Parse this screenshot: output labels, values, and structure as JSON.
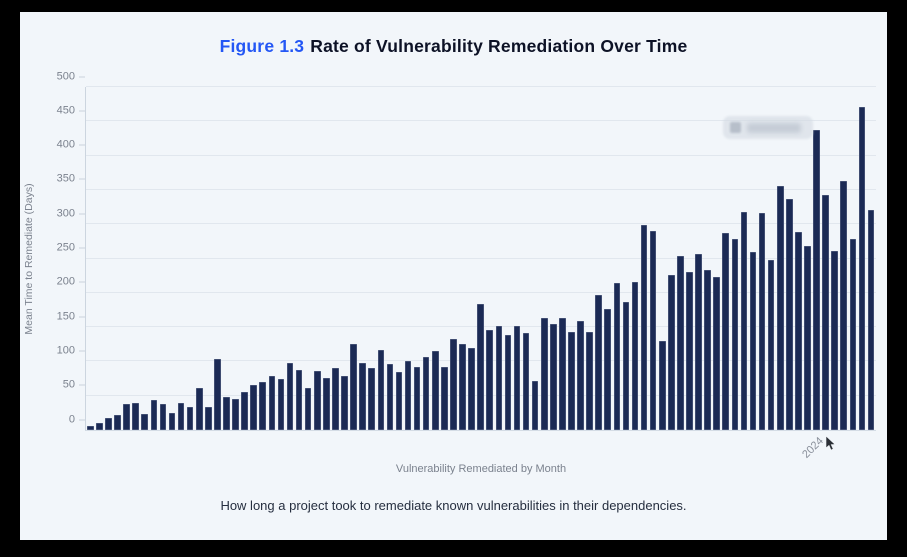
{
  "figure": {
    "label": "Figure 1.3",
    "title": "Rate of Vulnerability Remediation Over Time",
    "caption": "How long a project took to remediate known vulnerabilities in their dependencies."
  },
  "chart_data": {
    "type": "bar",
    "title": "Figure 1.3 Rate of Vulnerability Remediation Over Time",
    "xlabel": "Vulnerability Remediated by Month",
    "ylabel": "Mean Time to Remediate (Days)",
    "ylim": [
      0,
      500
    ],
    "yticks": [
      0,
      50,
      100,
      150,
      200,
      250,
      300,
      350,
      400,
      450,
      500
    ],
    "grid": true,
    "bar_color": "#1b2a55",
    "x_unit": "month (unlabeled ticks)",
    "xticks": [
      {
        "label": "2024",
        "bar_index": 80
      }
    ],
    "legend": {
      "visible": true,
      "redacted_blur": true,
      "label": ""
    },
    "values": [
      6,
      10,
      17,
      22,
      38,
      40,
      24,
      44,
      38,
      25,
      40,
      34,
      61,
      33,
      104,
      48,
      45,
      56,
      66,
      70,
      79,
      75,
      98,
      87,
      61,
      86,
      76,
      91,
      79,
      126,
      97,
      91,
      117,
      96,
      84,
      101,
      92,
      106,
      115,
      92,
      132,
      126,
      119,
      183,
      146,
      151,
      139,
      152,
      142,
      71,
      164,
      154,
      163,
      143,
      159,
      143,
      197,
      176,
      215,
      187,
      216,
      299,
      290,
      130,
      226,
      253,
      231,
      256,
      233,
      223,
      287,
      278,
      318,
      259,
      316,
      248,
      356,
      337,
      288,
      268,
      437,
      343,
      261,
      363,
      279,
      471,
      320
    ]
  },
  "colors": {
    "background": "#f2f6fa",
    "frame": "#000000",
    "bar": "#1b2a55",
    "title_accent": "#2457f5",
    "title_text": "#0d1226",
    "axis_text": "#7b828e",
    "gridline": "#e1e7ee",
    "caption_text": "#252e3f"
  }
}
